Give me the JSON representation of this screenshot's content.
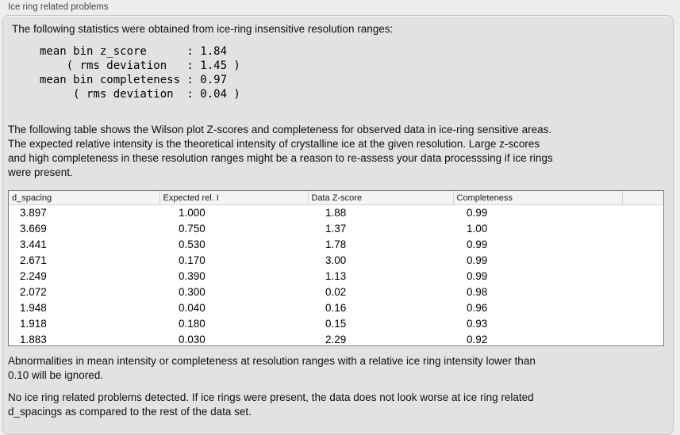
{
  "panel": {
    "title": "Ice ring related problems"
  },
  "intro": "The following statistics were obtained from ice-ring insensitive resolution ranges:",
  "stats": {
    "lines": [
      "mean bin z_score      : 1.84",
      "    ( rms deviation   : 1.45 )",
      "mean bin completeness : 0.97",
      "     ( rms deviation  : 0.04 )"
    ]
  },
  "description": {
    "lines": [
      "The following table shows the Wilson plot Z-scores and completeness for observed data in ice-ring sensitive areas.",
      "The expected relative intensity is the theoretical intensity of crystalline ice at the given resolution. Large z-scores",
      "and high completeness in these resolution ranges might be a reason to re-assess your data processsing if ice rings",
      "were present."
    ]
  },
  "table": {
    "columns": [
      "d_spacing",
      "Expected rel. I",
      "Data Z-score",
      "Completeness",
      ""
    ],
    "rows": [
      [
        "3.897",
        "1.000",
        "1.88",
        "0.99"
      ],
      [
        "3.669",
        "0.750",
        "1.37",
        "1.00"
      ],
      [
        "3.441",
        "0.530",
        "1.78",
        "0.99"
      ],
      [
        "2.671",
        "0.170",
        "3.00",
        "0.99"
      ],
      [
        "2.249",
        "0.390",
        "1.13",
        "0.99"
      ],
      [
        "2.072",
        "0.300",
        "0.02",
        "0.98"
      ],
      [
        "1.948",
        "0.040",
        "0.16",
        "0.96"
      ],
      [
        "1.918",
        "0.180",
        "0.15",
        "0.93"
      ],
      [
        "1.883",
        "0.030",
        "2.29",
        "0.92"
      ]
    ]
  },
  "notes": {
    "ignore_lines": [
      "Abnormalities in mean intensity or completeness at resolution ranges with a relative ice ring intensity lower than",
      "0.10 will be ignored."
    ],
    "conclusion_lines": [
      "No ice ring related problems detected. If ice rings were present, the data does not look worse at ice ring related",
      "d_spacings as compared to the rest of the data set."
    ]
  },
  "colors": {
    "page_bg": "#ededed",
    "panel_bg": "#e2e2e2",
    "panel_border": "#c6c6c6",
    "table_bg": "#ffffff",
    "table_border": "#7a7a7a",
    "header_bg": "#f4f4f4",
    "header_line": "#d4d4d4",
    "text_color": "#111111",
    "title_color": "#474747"
  }
}
